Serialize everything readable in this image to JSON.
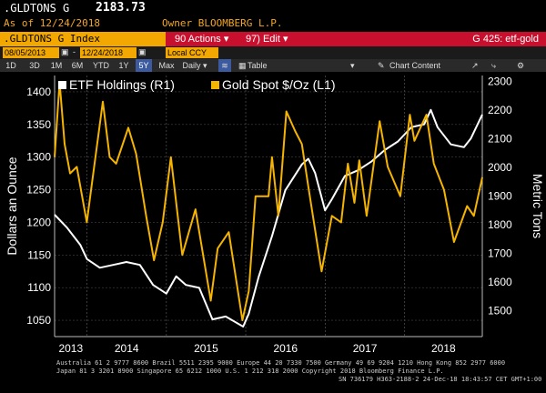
{
  "header": {
    "ticker": ".GLDTONS G",
    "last_value": "2183.73",
    "as_of": "As of 12/24/2018",
    "owner": "Owner BLOOMBERG L.P."
  },
  "toolbar": {
    "index_name": ".GLDTONS G Index",
    "actions_label": "90 Actions ▾",
    "edit_label": "97) Edit ▾",
    "page_id": "G 425: etf-gold",
    "start_date": "08/05/2013",
    "end_date": "12/24/2018",
    "currency": "Local CCY",
    "periods": [
      "1D",
      "3D",
      "1M",
      "6M",
      "YTD",
      "1Y",
      "5Y",
      "Max"
    ],
    "selected_period": "5Y",
    "frequency": "Daily ▾",
    "table_label": "Table",
    "chart_content_label": "Chart Content"
  },
  "colors": {
    "etf": "#ffffff",
    "gold": "#f5b400",
    "accent_bar": "#c8102e",
    "input_bg": "#f2a800"
  },
  "chart_data": {
    "type": "line",
    "left_axis": {
      "label": "Dollars an Ounce",
      "ticks": [
        1050,
        1100,
        1150,
        1200,
        1250,
        1300,
        1350,
        1400
      ],
      "range": [
        1025,
        1425
      ]
    },
    "right_axis": {
      "label": "Metric Tons",
      "ticks": [
        1500,
        1600,
        1700,
        1800,
        1900,
        2000,
        2100,
        2200,
        2300
      ],
      "range": [
        1410,
        2320
      ]
    },
    "x_range": [
      "2013-08-05",
      "2018-12-24"
    ],
    "x_tick_labels": [
      "2013",
      "2014",
      "2015",
      "2016",
      "2017",
      "2018"
    ],
    "grid": true,
    "legend_position": "top-left",
    "series": [
      {
        "name": "ETF Holdings (R1)",
        "axis": "right",
        "points": [
          [
            "2013-08-05",
            1835
          ],
          [
            "2013-10-01",
            1790
          ],
          [
            "2013-12-01",
            1730
          ],
          [
            "2014-01-01",
            1680
          ],
          [
            "2014-03-01",
            1650
          ],
          [
            "2014-05-01",
            1660
          ],
          [
            "2014-07-01",
            1670
          ],
          [
            "2014-09-01",
            1660
          ],
          [
            "2014-11-01",
            1590
          ],
          [
            "2015-01-01",
            1560
          ],
          [
            "2015-02-15",
            1620
          ],
          [
            "2015-04-01",
            1590
          ],
          [
            "2015-06-01",
            1580
          ],
          [
            "2015-08-01",
            1470
          ],
          [
            "2015-10-01",
            1480
          ],
          [
            "2015-12-20",
            1445
          ],
          [
            "2016-01-15",
            1490
          ],
          [
            "2016-03-01",
            1620
          ],
          [
            "2016-05-01",
            1760
          ],
          [
            "2016-07-01",
            1920
          ],
          [
            "2016-09-15",
            2010
          ],
          [
            "2016-10-15",
            2030
          ],
          [
            "2016-11-15",
            1980
          ],
          [
            "2016-12-31",
            1850
          ],
          [
            "2017-02-01",
            1890
          ],
          [
            "2017-04-01",
            1970
          ],
          [
            "2017-06-01",
            1990
          ],
          [
            "2017-08-01",
            2020
          ],
          [
            "2017-10-01",
            2060
          ],
          [
            "2017-12-01",
            2090
          ],
          [
            "2018-02-01",
            2140
          ],
          [
            "2018-04-01",
            2150
          ],
          [
            "2018-05-01",
            2200
          ],
          [
            "2018-06-01",
            2140
          ],
          [
            "2018-08-01",
            2080
          ],
          [
            "2018-10-01",
            2070
          ],
          [
            "2018-11-01",
            2100
          ],
          [
            "2018-12-24",
            2184
          ]
        ]
      },
      {
        "name": "Gold Spot $/Oz  (L1)",
        "axis": "left",
        "points": [
          [
            "2013-08-05",
            1300
          ],
          [
            "2013-08-28",
            1415
          ],
          [
            "2013-09-20",
            1320
          ],
          [
            "2013-10-15",
            1275
          ],
          [
            "2013-11-15",
            1285
          ],
          [
            "2013-12-31",
            1200
          ],
          [
            "2014-01-20",
            1250
          ],
          [
            "2014-03-15",
            1385
          ],
          [
            "2014-04-15",
            1300
          ],
          [
            "2014-05-15",
            1290
          ],
          [
            "2014-07-10",
            1345
          ],
          [
            "2014-08-15",
            1305
          ],
          [
            "2014-09-30",
            1210
          ],
          [
            "2014-11-05",
            1142
          ],
          [
            "2014-12-15",
            1200
          ],
          [
            "2015-01-22",
            1300
          ],
          [
            "2015-03-15",
            1150
          ],
          [
            "2015-05-15",
            1220
          ],
          [
            "2015-07-24",
            1080
          ],
          [
            "2015-08-25",
            1160
          ],
          [
            "2015-10-15",
            1185
          ],
          [
            "2015-12-17",
            1050
          ],
          [
            "2016-01-15",
            1095
          ],
          [
            "2016-02-15",
            1240
          ],
          [
            "2016-04-15",
            1240
          ],
          [
            "2016-05-01",
            1300
          ],
          [
            "2016-05-30",
            1210
          ],
          [
            "2016-07-06",
            1370
          ],
          [
            "2016-08-15",
            1340
          ],
          [
            "2016-09-15",
            1320
          ],
          [
            "2016-10-15",
            1255
          ],
          [
            "2016-12-15",
            1125
          ],
          [
            "2017-01-31",
            1210
          ],
          [
            "2017-03-15",
            1200
          ],
          [
            "2017-04-15",
            1290
          ],
          [
            "2017-05-15",
            1230
          ],
          [
            "2017-06-06",
            1295
          ],
          [
            "2017-07-10",
            1210
          ],
          [
            "2017-09-08",
            1355
          ],
          [
            "2017-10-15",
            1285
          ],
          [
            "2017-12-12",
            1240
          ],
          [
            "2018-01-25",
            1365
          ],
          [
            "2018-02-15",
            1325
          ],
          [
            "2018-04-11",
            1365
          ],
          [
            "2018-05-15",
            1290
          ],
          [
            "2018-07-01",
            1250
          ],
          [
            "2018-08-16",
            1170
          ],
          [
            "2018-10-15",
            1225
          ],
          [
            "2018-11-15",
            1210
          ],
          [
            "2018-12-24",
            1269
          ]
        ]
      }
    ]
  },
  "footer": {
    "line1": "Australia 61 2 9777 8600  Brazil 5511 2395 9000  Europe 44 20 7330 7500  Germany 49 69 9204 1210  Hong Kong 852 2977 6000",
    "line2": "Japan 81 3 3201 8900       Singapore 65 6212 1000       U.S. 1 212 318 2000            Copyright 2018 Bloomberg Finance L.P.",
    "line3": "SN 736179 H363-2188-2 24-Dec-18 18:43:57 CET  GMT+1:00"
  }
}
